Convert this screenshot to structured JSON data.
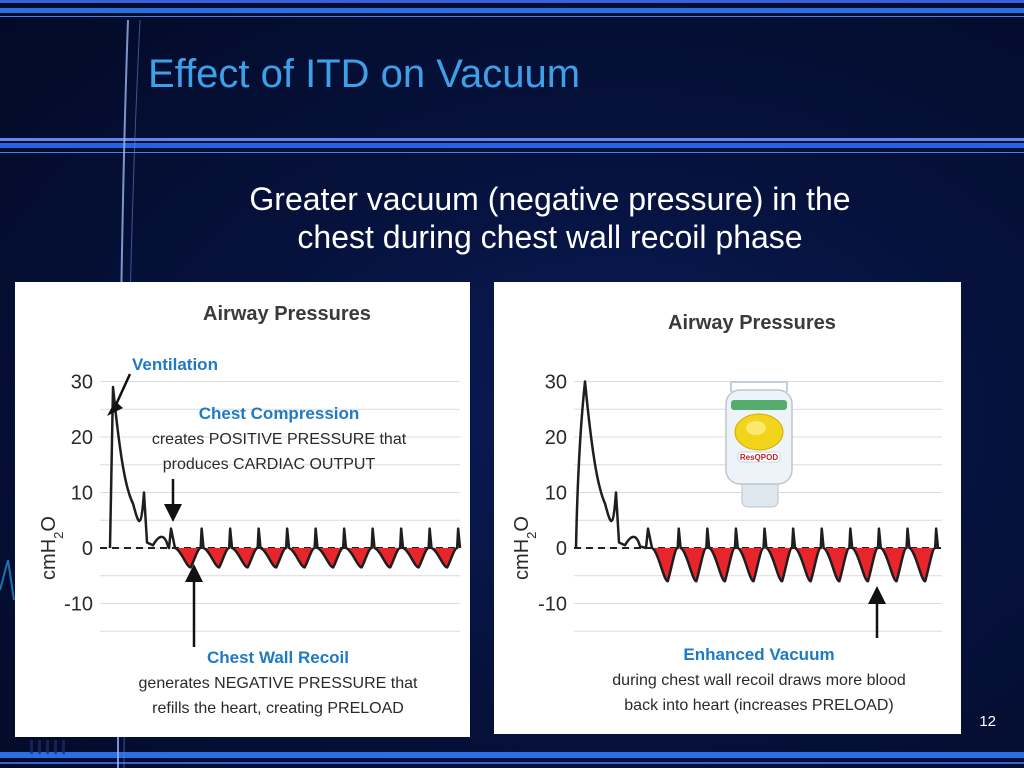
{
  "slide": {
    "title": "Effect of ITD on Vacuum",
    "subtitle_line1": "Greater vacuum (negative pressure) in the",
    "subtitle_line2": "chest during chest wall recoil phase",
    "page_number": "12"
  },
  "colors": {
    "title": "#3ea0e8",
    "accent_blue": "#1f7ac4",
    "negative_fill": "#e8252a",
    "background": "#06123d"
  },
  "chart_data": [
    {
      "type": "line",
      "title": "Airway Pressures",
      "ylabel_main": "cmH",
      "ylabel_sub": "2",
      "ylabel_end": "O",
      "yticks": [
        "30",
        "20",
        "10",
        "0",
        "-10"
      ],
      "ylim": [
        -15,
        33
      ],
      "grid": true,
      "baseline": 0,
      "ventilation": {
        "peak": 29,
        "second_peak": 10,
        "bump": 1.8
      },
      "compressions": {
        "count": 10,
        "peak": 3.5,
        "trough": -3.5
      },
      "annotations": {
        "ventilation": "Ventilation",
        "compression_title": "Chest Compression",
        "compression_line1": "creates POSITIVE PRESSURE that",
        "compression_line2": "produces CARDIAC OUTPUT",
        "recoil_title": "Chest Wall Recoil",
        "recoil_line1": "generates NEGATIVE PRESSURE that",
        "recoil_line2": "refills the heart, creating PRELOAD"
      }
    },
    {
      "type": "line",
      "title": "Airway Pressures",
      "ylabel_main": "cmH",
      "ylabel_sub": "2",
      "ylabel_end": "O",
      "yticks": [
        "30",
        "20",
        "10",
        "0",
        "-10"
      ],
      "ylim": [
        -15,
        33
      ],
      "grid": true,
      "baseline": 0,
      "device_label": "ResQPOD",
      "ventilation": {
        "peak": 30,
        "second_peak": 10,
        "bump": 1.8
      },
      "compressions": {
        "count": 10,
        "peak": 3.5,
        "trough": -6
      },
      "annotations": {
        "vacuum_title": "Enhanced Vacuum",
        "vacuum_line1": "during chest wall recoil draws more blood",
        "vacuum_line2": "back into heart (increases PRELOAD)"
      }
    }
  ]
}
